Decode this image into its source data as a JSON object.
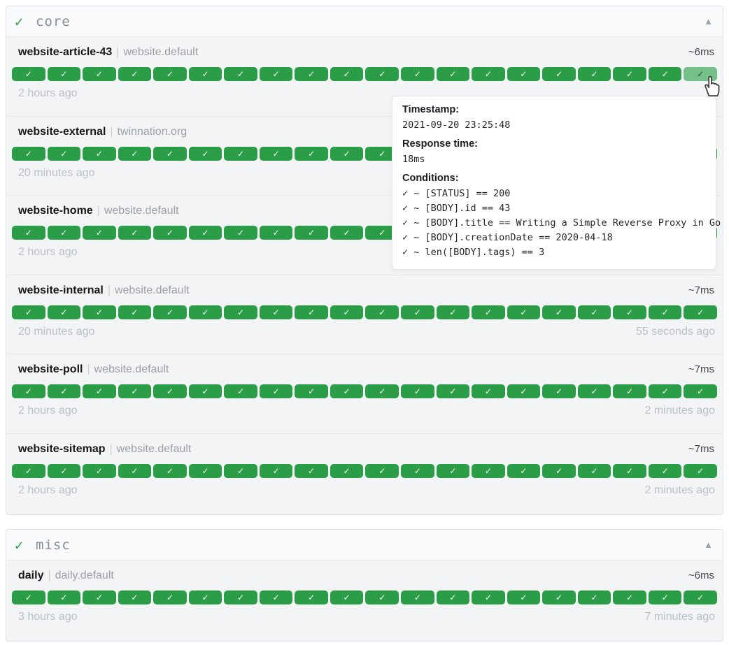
{
  "ui": {
    "group_check": "✓",
    "collapse_icon": "▲",
    "badge_check": "✓",
    "divider": "|"
  },
  "colors": {
    "success": "#2a9d46",
    "success_hover": "#74c088",
    "group_name_text": "#868e96",
    "muted_time_text": "#b9c0c7"
  },
  "groups": [
    {
      "name": "core",
      "services": [
        {
          "name": "website-article-43",
          "suffix": "website.default",
          "response_time": "~6ms",
          "oldest": "2 hours ago",
          "newest": "",
          "badge_count": 20,
          "hovered_badge_index": 19
        },
        {
          "name": "website-external",
          "suffix": "twinnation.org",
          "response_time": "",
          "oldest": "20 minutes ago",
          "newest": "",
          "badge_count": 20
        },
        {
          "name": "website-home",
          "suffix": "website.default",
          "response_time": "",
          "oldest": "2 hours ago",
          "newest": "",
          "badge_count": 20
        },
        {
          "name": "website-internal",
          "suffix": "website.default",
          "response_time": "~7ms",
          "oldest": "20 minutes ago",
          "newest": "55 seconds ago",
          "badge_count": 20
        },
        {
          "name": "website-poll",
          "suffix": "website.default",
          "response_time": "~7ms",
          "oldest": "2 hours ago",
          "newest": "2 minutes ago",
          "badge_count": 20
        },
        {
          "name": "website-sitemap",
          "suffix": "website.default",
          "response_time": "~7ms",
          "oldest": "2 hours ago",
          "newest": "2 minutes ago",
          "badge_count": 20
        }
      ]
    },
    {
      "name": "misc",
      "services": [
        {
          "name": "daily",
          "suffix": "daily.default",
          "response_time": "~6ms",
          "oldest": "3 hours ago",
          "newest": "7 minutes ago",
          "badge_count": 20
        }
      ]
    }
  ],
  "tooltip": {
    "timestamp_label": "Timestamp:",
    "timestamp": "2021-09-20 23:25:48",
    "response_label": "Response time:",
    "response": "18ms",
    "conditions_label": "Conditions:",
    "conditions": [
      "✓ ~ [STATUS] == 200",
      "✓ ~ [BODY].id == 43",
      "✓ ~ [BODY].title == Writing a Simple Reverse Proxy in Go",
      "✓ ~ [BODY].creationDate == 2020-04-18",
      "✓ ~ len([BODY].tags) == 3"
    ]
  }
}
